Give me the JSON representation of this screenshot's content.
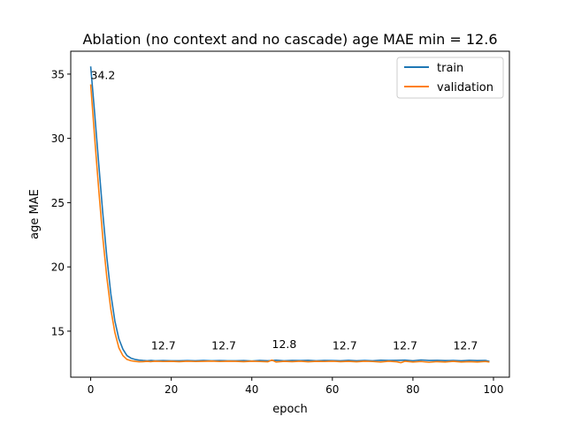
{
  "chart_data": {
    "type": "line",
    "title": "Ablation (no context and no cascade) age MAE   min = 12.6",
    "xlabel": "epoch",
    "ylabel": "age MAE",
    "xlim": [
      -4.95,
      103.95
    ],
    "ylim": [
      11.42,
      36.78
    ],
    "xticks": [
      0,
      20,
      40,
      60,
      80,
      100
    ],
    "yticks": [
      15,
      20,
      25,
      30,
      35
    ],
    "grid": false,
    "legend_position": "top-right",
    "series": [
      {
        "name": "train",
        "color": "#1f77b4",
        "x": [
          0,
          1,
          2,
          3,
          4,
          5,
          6,
          7,
          8,
          9,
          10,
          11,
          12,
          13,
          14,
          15,
          16,
          18,
          20,
          22,
          24,
          26,
          28,
          30,
          32,
          34,
          36,
          38,
          40,
          42,
          44,
          46,
          48,
          50,
          52,
          54,
          56,
          58,
          60,
          62,
          64,
          66,
          68,
          70,
          72,
          74,
          76,
          78,
          80,
          82,
          84,
          86,
          88,
          90,
          92,
          94,
          96,
          98,
          99
        ],
        "values": [
          35.6,
          31.9,
          28.0,
          24.2,
          20.8,
          17.9,
          15.8,
          14.4,
          13.6,
          13.1,
          12.9,
          12.8,
          12.75,
          12.72,
          12.7,
          12.72,
          12.7,
          12.71,
          12.7,
          12.7,
          12.71,
          12.7,
          12.72,
          12.7,
          12.71,
          12.7,
          12.7,
          12.71,
          12.68,
          12.72,
          12.7,
          12.74,
          12.7,
          12.72,
          12.71,
          12.73,
          12.7,
          12.72,
          12.71,
          12.7,
          12.73,
          12.7,
          12.72,
          12.7,
          12.74,
          12.72,
          12.73,
          12.75,
          12.7,
          12.76,
          12.72,
          12.73,
          12.71,
          12.72,
          12.7,
          12.73,
          12.71,
          12.72,
          12.65
        ]
      },
      {
        "name": "validation",
        "color": "#ff7f0e",
        "x": [
          0,
          1,
          2,
          3,
          4,
          5,
          6,
          7,
          8,
          9,
          10,
          11,
          12,
          13,
          14,
          15,
          16,
          18,
          20,
          22,
          24,
          26,
          28,
          30,
          32,
          34,
          36,
          38,
          40,
          42,
          44,
          45,
          46,
          48,
          50,
          52,
          54,
          56,
          58,
          60,
          62,
          64,
          66,
          68,
          70,
          72,
          74,
          76,
          77,
          78,
          80,
          82,
          84,
          86,
          88,
          90,
          92,
          94,
          96,
          98,
          99
        ],
        "values": [
          34.2,
          30.0,
          26.0,
          22.3,
          19.2,
          16.7,
          14.9,
          13.7,
          13.1,
          12.8,
          12.7,
          12.65,
          12.62,
          12.63,
          12.65,
          12.63,
          12.66,
          12.64,
          12.65,
          12.63,
          12.66,
          12.64,
          12.65,
          12.67,
          12.64,
          12.66,
          12.65,
          12.63,
          12.66,
          12.64,
          12.62,
          12.75,
          12.6,
          12.65,
          12.63,
          12.66,
          12.62,
          12.65,
          12.64,
          12.66,
          12.63,
          12.65,
          12.62,
          12.66,
          12.64,
          12.6,
          12.66,
          12.62,
          12.55,
          12.66,
          12.6,
          12.64,
          12.58,
          12.63,
          12.6,
          12.65,
          12.6,
          12.63,
          12.6,
          12.64,
          12.6
        ]
      }
    ],
    "annotations": [
      {
        "x": 0,
        "y": 34.2,
        "label": "34.2"
      },
      {
        "x": 15,
        "y": 12.7,
        "label": "12.7"
      },
      {
        "x": 30,
        "y": 12.7,
        "label": "12.7"
      },
      {
        "x": 45,
        "y": 12.8,
        "label": "12.8"
      },
      {
        "x": 60,
        "y": 12.7,
        "label": "12.7"
      },
      {
        "x": 75,
        "y": 12.7,
        "label": "12.7"
      },
      {
        "x": 90,
        "y": 12.7,
        "label": "12.7"
      }
    ]
  }
}
